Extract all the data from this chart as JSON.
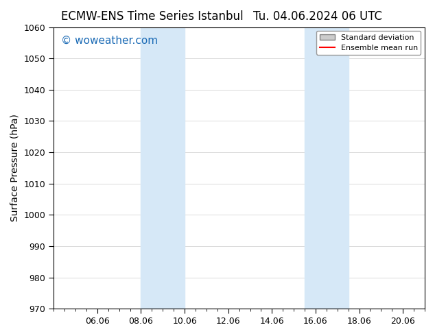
{
  "title_left": "ECMW-ENS Time Series Istanbul",
  "title_right": "Tu. 04.06.2024 06 UTC",
  "ylabel": "Surface Pressure (hPa)",
  "ylim": [
    970,
    1060
  ],
  "yticks": [
    970,
    980,
    990,
    1000,
    1010,
    1020,
    1030,
    1040,
    1050,
    1060
  ],
  "xlim_start": 4.0,
  "xlim_end": 21.0,
  "xticks": [
    6.0,
    8.0,
    10.0,
    12.0,
    14.0,
    16.0,
    18.0,
    20.0
  ],
  "xticklabels": [
    "06.06",
    "08.06",
    "10.06",
    "12.06",
    "14.06",
    "16.06",
    "18.06",
    "20.06"
  ],
  "shaded_bands": [
    {
      "x_start": 8.0,
      "x_end": 10.0
    },
    {
      "x_start": 15.5,
      "x_end": 17.5
    }
  ],
  "shade_color": "#d6e8f7",
  "background_color": "#ffffff",
  "plot_bg_color": "#ffffff",
  "watermark_text": "© woweather.com",
  "watermark_color": "#1a6ab5",
  "watermark_fontsize": 11,
  "legend_std_label": "Standard deviation",
  "legend_mean_label": "Ensemble mean run",
  "legend_std_color": "#cccccc",
  "legend_mean_color": "#ff0000",
  "title_fontsize": 12,
  "tick_fontsize": 9,
  "ylabel_fontsize": 10,
  "grid_color": "#cccccc",
  "border_color": "#000000"
}
